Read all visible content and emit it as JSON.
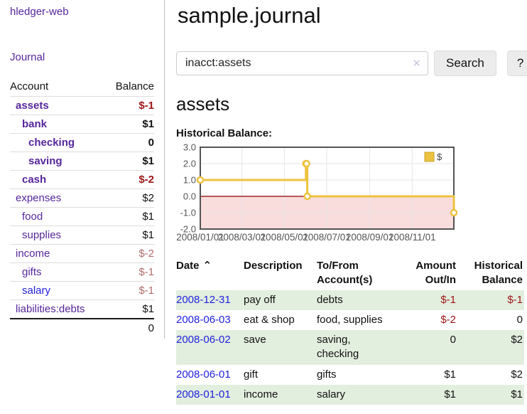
{
  "colors": {
    "link_purple": "#56269b",
    "link_blue": "#2222dd",
    "negative_strong": "#9d1515",
    "negative_muted": "#b26d6d",
    "row_green": "#e2eede",
    "chart_gold": "#edc240"
  },
  "app": {
    "brand": "hledger-web",
    "nav_journal": "Journal"
  },
  "sidebar": {
    "accounts_header": {
      "account": "Account",
      "balance": "Balance"
    },
    "accounts": [
      {
        "name": "assets",
        "level": 0,
        "bold": true,
        "balance": "$-1",
        "balance_style": "negative-strong"
      },
      {
        "name": "bank",
        "level": 1,
        "bold": true,
        "balance": "$1",
        "balance_style": "normal-strong"
      },
      {
        "name": "checking",
        "level": 2,
        "bold": true,
        "balance": "0",
        "balance_style": "normal-strong"
      },
      {
        "name": "saving",
        "level": 2,
        "bold": true,
        "balance": "$1",
        "balance_style": "normal-strong"
      },
      {
        "name": "cash",
        "level": 1,
        "bold": true,
        "balance": "$-2",
        "balance_style": "negative-strong"
      },
      {
        "name": "expenses",
        "level": 0,
        "bold": false,
        "balance": "$2",
        "balance_style": "normal"
      },
      {
        "name": "food",
        "level": 1,
        "bold": false,
        "balance": "$1",
        "balance_style": "normal"
      },
      {
        "name": "supplies",
        "level": 1,
        "bold": false,
        "balance": "$1",
        "balance_style": "normal"
      },
      {
        "name": "income",
        "level": 0,
        "bold": false,
        "balance": "$-2",
        "balance_style": "negative-muted"
      },
      {
        "name": "gifts",
        "level": 1,
        "bold": false,
        "balance": "$-1",
        "balance_style": "negative-muted"
      },
      {
        "name": "salary",
        "level": 1,
        "bold": false,
        "balance": "$-1",
        "balance_style": "negative-muted",
        "link_color": "#2222dd"
      },
      {
        "name": "liabilities:debts",
        "level": 0,
        "bold": false,
        "balance": "$1",
        "balance_style": "normal"
      }
    ],
    "total": "0"
  },
  "header": {
    "title": "sample.journal"
  },
  "search": {
    "value": "inacct:assets",
    "clear_icon": "✕",
    "button_label": "Search",
    "help_label": "?"
  },
  "account_page": {
    "title": "assets",
    "chart_title": "Historical Balance:"
  },
  "chart_data": {
    "type": "line",
    "step": true,
    "title": "Historical Balance",
    "series": [
      {
        "name": "$",
        "color": "#edc240",
        "points": [
          [
            "2008-01-01",
            1
          ],
          [
            "2008-06-01",
            2
          ],
          [
            "2008-06-02",
            2
          ],
          [
            "2008-06-03",
            0
          ],
          [
            "2008-12-31",
            -1
          ]
        ]
      }
    ],
    "x_range": [
      "2008-01-01",
      "2008-12-31"
    ],
    "x_ticks": [
      "2008/01/01",
      "2008/03/01",
      "2008/05/01",
      "2008/07/01",
      "2008/09/01",
      "2008/11/01"
    ],
    "y_ticks": [
      3.0,
      2.0,
      1.0,
      0.0,
      -1.0,
      -2.0
    ],
    "ylim": [
      -2,
      3
    ],
    "grid": true,
    "legend_position": "top-right",
    "zero_line_color": "#8b0000",
    "negative_region_color": "#f9dcdc"
  },
  "register": {
    "headers": {
      "date": "Date",
      "sort_icon": "⌃",
      "description": "Description",
      "account": "To/From Account(s)",
      "amount": "Amount Out/In",
      "balance": "Historical Balance"
    },
    "rows": [
      {
        "date": "2008-12-31",
        "description": "pay off",
        "account": "debts",
        "amount": "$-1",
        "amount_style": "negative",
        "balance": "$-1",
        "balance_style": "negative",
        "stripe": true
      },
      {
        "date": "2008-06-03",
        "description": "eat & shop",
        "account": "food, supplies",
        "amount": "$-2",
        "amount_style": "negative",
        "balance": "0",
        "balance_style": "normal",
        "stripe": false
      },
      {
        "date": "2008-06-02",
        "description": "save",
        "account": "saving, checking",
        "amount": "0",
        "amount_style": "normal",
        "balance": "$2",
        "balance_style": "normal",
        "stripe": true
      },
      {
        "date": "2008-06-01",
        "description": "gift",
        "account": "gifts",
        "amount": "$1",
        "amount_style": "normal",
        "balance": "$2",
        "balance_style": "normal",
        "stripe": false
      },
      {
        "date": "2008-01-01",
        "description": "income",
        "account": "salary",
        "amount": "$1",
        "amount_style": "normal",
        "balance": "$1",
        "balance_style": "normal",
        "stripe": true
      }
    ]
  }
}
